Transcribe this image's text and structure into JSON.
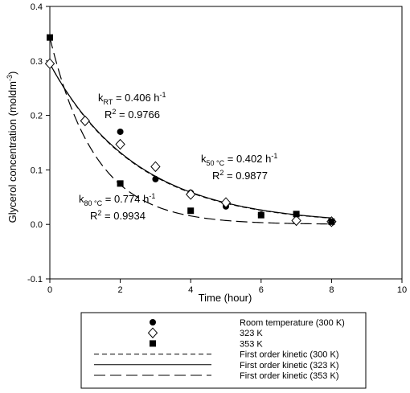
{
  "chart_data": {
    "type": "scatter",
    "xlabel": "Time (hour)",
    "ylabel_main": "Glycerol concentration (moldm",
    "ylabel_sup": "-3",
    "ylabel_end": ")",
    "xlim": [
      0,
      10
    ],
    "ylim": [
      -0.1,
      0.4
    ],
    "x_ticks": [
      0,
      2,
      4,
      6,
      8,
      10
    ],
    "x_tick_labels": [
      "0",
      "2",
      "4",
      "6",
      "8",
      "10"
    ],
    "y_ticks": [
      -0.1,
      0.0,
      0.1,
      0.2,
      0.3,
      0.4
    ],
    "y_tick_labels": [
      "-0.1",
      "0.0",
      "0.1",
      "0.2",
      "0.3",
      "0.4"
    ],
    "grid": false,
    "legend_position": "below",
    "series": [
      {
        "name": "Room temperature (300 K)",
        "marker": "filled-circle",
        "x": [
          0,
          2,
          3,
          4,
          5,
          6,
          8
        ],
        "y": [
          0.295,
          0.17,
          0.083,
          0.058,
          0.033,
          0.018,
          0.003
        ]
      },
      {
        "name": "323 K",
        "marker": "open-diamond",
        "x": [
          0,
          1,
          2,
          3,
          4,
          5,
          7,
          8
        ],
        "y": [
          0.295,
          0.19,
          0.147,
          0.106,
          0.055,
          0.04,
          0.007,
          0.005
        ]
      },
      {
        "name": "353 K",
        "marker": "filled-square",
        "x": [
          0,
          2,
          4,
          6,
          7,
          8
        ],
        "y": [
          0.343,
          0.075,
          0.025,
          0.017,
          0.019,
          0.005
        ]
      }
    ],
    "fits": [
      {
        "name": "First order kinetic (300 K)",
        "style": "short-dash",
        "y0": 0.295,
        "k": 0.406
      },
      {
        "name": "First order kinetic (323 K)",
        "style": "solid",
        "y0": 0.295,
        "k": 0.402
      },
      {
        "name": "First order kinetic (353 K)",
        "style": "long-dash",
        "y0": 0.343,
        "k": 0.774
      }
    ],
    "annotations": [
      {
        "id": "rt",
        "k_sub": "RT",
        "k_value": " = 0.406 h",
        "k_sup": "-1",
        "r2_value": " = 0.9766"
      },
      {
        "id": "t50",
        "k_sub": "50 °C",
        "k_value": " = 0.402 h",
        "k_sup": "-1",
        "r2_value": " = 0.9877"
      },
      {
        "id": "t80",
        "k_sub": "80 °C",
        "k_value": " = 0.774 h",
        "k_sup": "-1",
        "r2_value": " = 0.9934"
      }
    ],
    "k_symbol": "k",
    "r2_symbol": "R",
    "r2_sup": "2"
  }
}
